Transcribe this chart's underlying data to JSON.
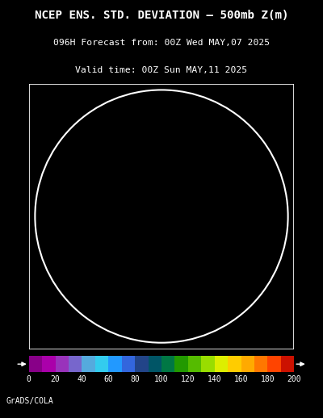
{
  "title_line1": "NCEP ENS. STD. DEVIATION – 500mb Z(m)",
  "title_line2": "096H Forecast from: 00Z Wed MAY,07 2025",
  "title_line3": "Valid time: 00Z Sun MAY,11 2025",
  "footer": "GrADS/COLA",
  "colorbar_values": [
    0,
    20,
    40,
    60,
    80,
    100,
    120,
    140,
    160,
    180,
    200
  ],
  "colorbar_colors": [
    "#880088",
    "#aa00aa",
    "#9933bb",
    "#7766cc",
    "#55aadd",
    "#33ccee",
    "#2299ff",
    "#3366dd",
    "#224488",
    "#005566",
    "#007744",
    "#229900",
    "#55bb00",
    "#99dd00",
    "#ddee00",
    "#ffcc00",
    "#ffaa00",
    "#ff7700",
    "#ff4400",
    "#cc1100"
  ],
  "bg_color": "#000000",
  "title_color": "#ffffff",
  "footer_text": "GrADS/COLA"
}
